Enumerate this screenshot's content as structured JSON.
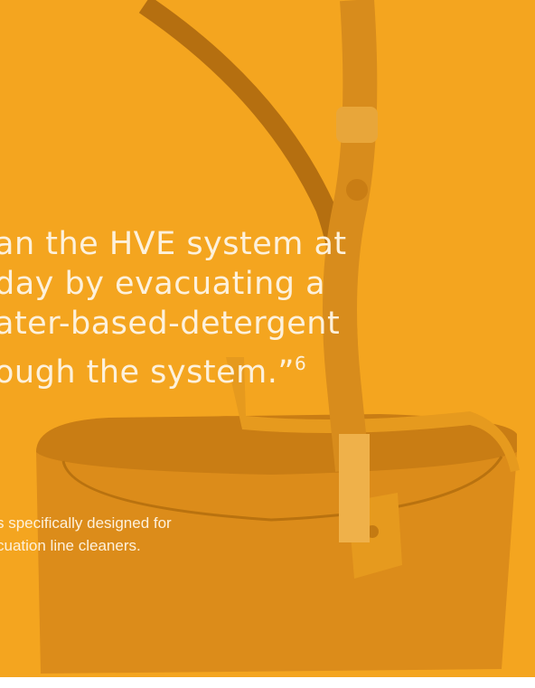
{
  "quote": {
    "lines": [
      "an the HVE system at",
      "day by evacuating a",
      "ater-based-detergent",
      "ough the system.”"
    ],
    "footnote": "6"
  },
  "note": {
    "lines": [
      "s specifically designed for",
      "cuation line cleaners."
    ]
  }
}
